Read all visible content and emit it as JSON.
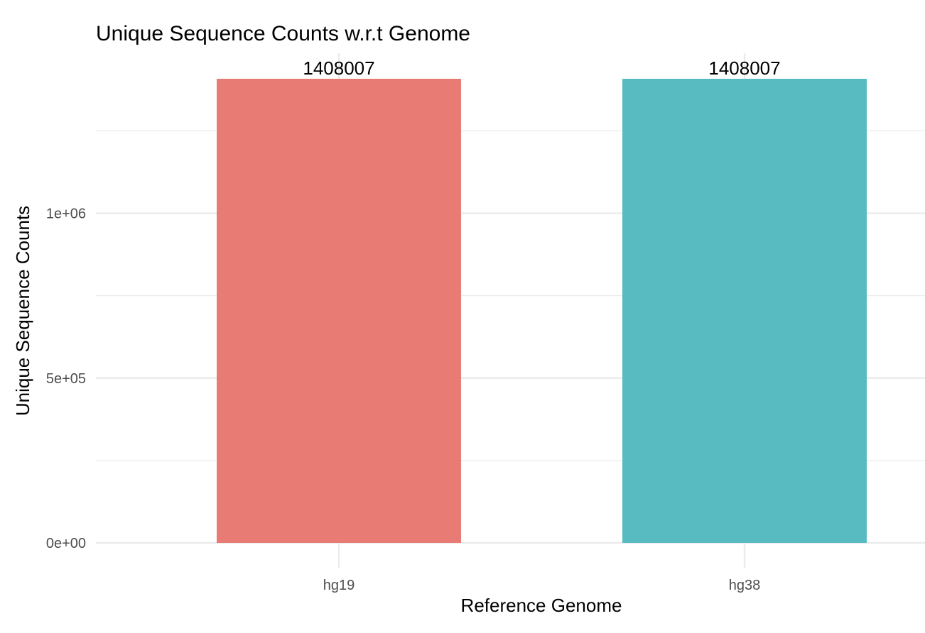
{
  "chart_data": {
    "type": "bar",
    "title": "Unique Sequence Counts w.r.t Genome",
    "xlabel": "Reference Genome",
    "ylabel": "Unique Sequence Counts",
    "categories": [
      "hg19",
      "hg38"
    ],
    "values": [
      1408007,
      1408007
    ],
    "data_labels": [
      "1408007",
      "1408007"
    ],
    "colors": [
      "#E87B73",
      "#58BBC1"
    ],
    "ylim": [
      0,
      1485000
    ],
    "yticks": [
      {
        "value": 0,
        "label": "0e+00"
      },
      {
        "value": 500000,
        "label": "5e+05"
      },
      {
        "value": 1000000,
        "label": "1e+06"
      }
    ],
    "minor_yticks": [
      250000,
      750000,
      1250000
    ],
    "grid": true,
    "legend": "none",
    "theme": {
      "grid_color": "#ebebeb",
      "tick_label_color": "#4d4d4d",
      "text_color": "#000000",
      "background": "#ffffff"
    }
  }
}
